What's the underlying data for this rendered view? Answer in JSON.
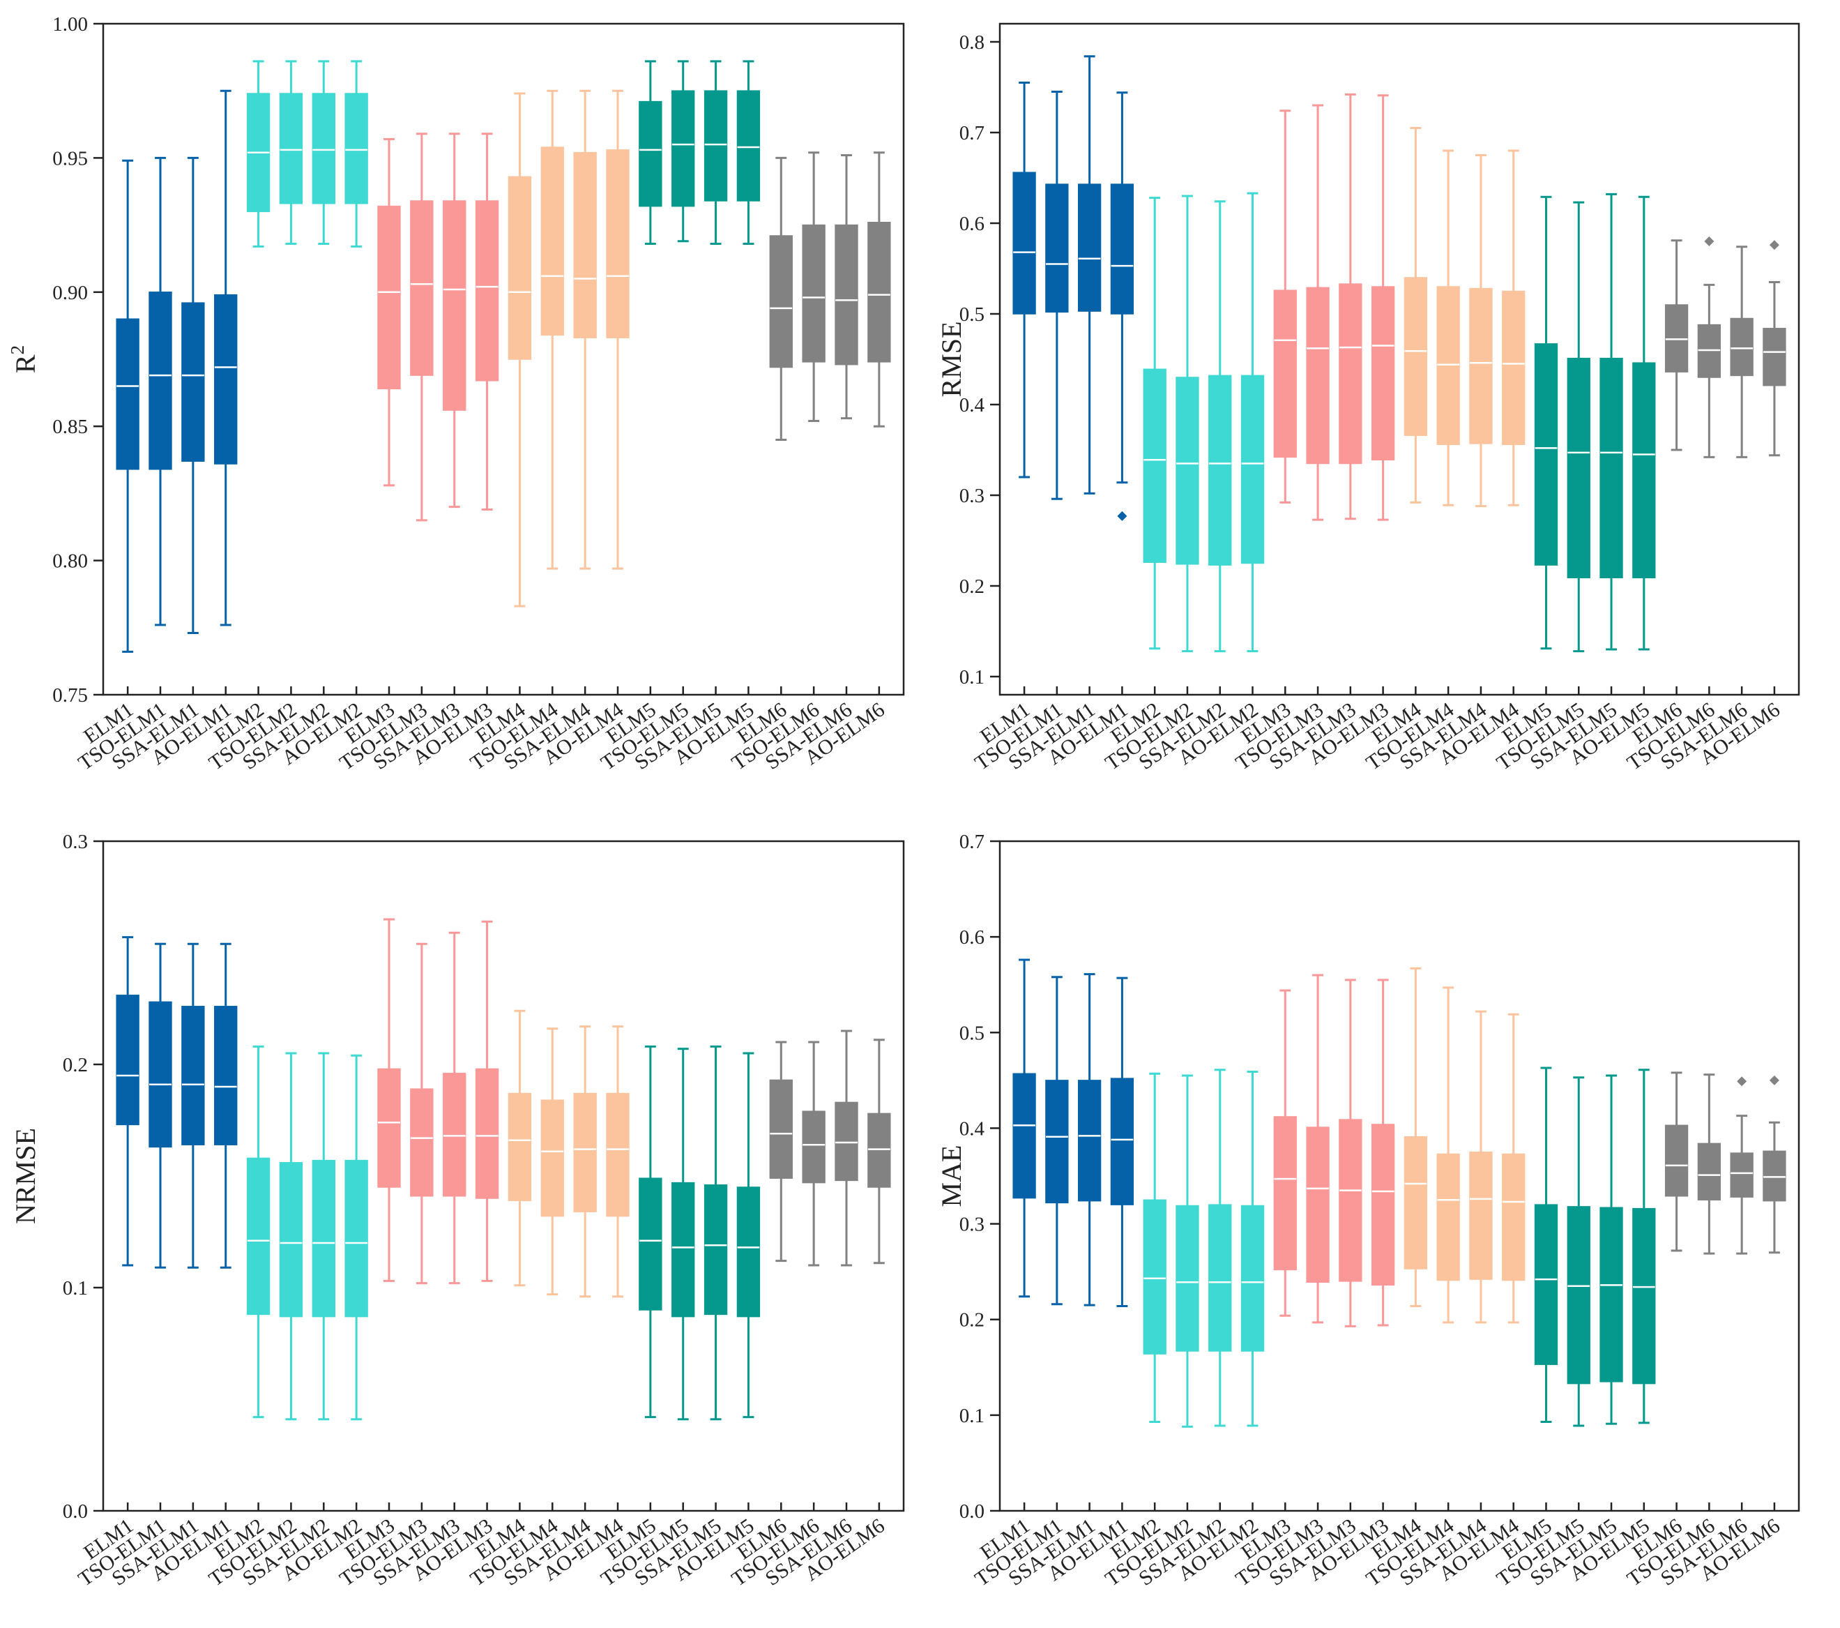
{
  "categories": [
    "ELM1",
    "TSO-ELM1",
    "SSA-ELM1",
    "AO-ELM1",
    "ELM2",
    "TSO-ELM2",
    "SSA-ELM2",
    "AO-ELM2",
    "ELM3",
    "TSO-ELM3",
    "SSA-ELM3",
    "AO-ELM3",
    "ELM4",
    "TSO-ELM4",
    "SSA-ELM4",
    "AO-ELM4",
    "ELM5",
    "TSO-ELM5",
    "SSA-ELM5",
    "AO-ELM5",
    "ELM6",
    "TSO-ELM6",
    "SSA-ELM6",
    "AO-ELM6"
  ],
  "group_colors": [
    "#0562a8",
    "#3dd9d2",
    "#fa9898",
    "#fcc49c",
    "#05998e",
    "#828282"
  ],
  "chart_data": [
    {
      "type": "box",
      "panel": "top-left",
      "ylabel": "R",
      "ylabel_sup": "2",
      "ylim": [
        0.75,
        1.0
      ],
      "yticks": [
        0.75,
        0.8,
        0.85,
        0.9,
        0.95,
        1.0
      ],
      "ytick_labels": [
        "0.75",
        "0.80",
        "0.85",
        "0.90",
        "0.95",
        "1.00"
      ],
      "boxes": [
        {
          "min": 0.766,
          "q1": 0.834,
          "median": 0.865,
          "q3": 0.89,
          "max": 0.949
        },
        {
          "min": 0.776,
          "q1": 0.834,
          "median": 0.869,
          "q3": 0.9,
          "max": 0.95
        },
        {
          "min": 0.773,
          "q1": 0.837,
          "median": 0.869,
          "q3": 0.896,
          "max": 0.95
        },
        {
          "min": 0.776,
          "q1": 0.836,
          "median": 0.872,
          "q3": 0.899,
          "max": 0.975
        },
        {
          "min": 0.917,
          "q1": 0.93,
          "median": 0.952,
          "q3": 0.974,
          "max": 0.986
        },
        {
          "min": 0.918,
          "q1": 0.933,
          "median": 0.953,
          "q3": 0.974,
          "max": 0.986
        },
        {
          "min": 0.918,
          "q1": 0.933,
          "median": 0.953,
          "q3": 0.974,
          "max": 0.986
        },
        {
          "min": 0.917,
          "q1": 0.933,
          "median": 0.953,
          "q3": 0.974,
          "max": 0.986
        },
        {
          "min": 0.828,
          "q1": 0.864,
          "median": 0.9,
          "q3": 0.932,
          "max": 0.957
        },
        {
          "min": 0.815,
          "q1": 0.869,
          "median": 0.903,
          "q3": 0.934,
          "max": 0.959
        },
        {
          "min": 0.82,
          "q1": 0.856,
          "median": 0.901,
          "q3": 0.934,
          "max": 0.959
        },
        {
          "min": 0.819,
          "q1": 0.867,
          "median": 0.902,
          "q3": 0.934,
          "max": 0.959
        },
        {
          "min": 0.783,
          "q1": 0.875,
          "median": 0.9,
          "q3": 0.943,
          "max": 0.974
        },
        {
          "min": 0.797,
          "q1": 0.884,
          "median": 0.906,
          "q3": 0.954,
          "max": 0.975
        },
        {
          "min": 0.797,
          "q1": 0.883,
          "median": 0.905,
          "q3": 0.952,
          "max": 0.975
        },
        {
          "min": 0.797,
          "q1": 0.883,
          "median": 0.906,
          "q3": 0.953,
          "max": 0.975
        },
        {
          "min": 0.918,
          "q1": 0.932,
          "median": 0.953,
          "q3": 0.971,
          "max": 0.986
        },
        {
          "min": 0.919,
          "q1": 0.932,
          "median": 0.955,
          "q3": 0.975,
          "max": 0.986
        },
        {
          "min": 0.918,
          "q1": 0.934,
          "median": 0.955,
          "q3": 0.975,
          "max": 0.986
        },
        {
          "min": 0.918,
          "q1": 0.934,
          "median": 0.954,
          "q3": 0.975,
          "max": 0.986
        },
        {
          "min": 0.845,
          "q1": 0.872,
          "median": 0.894,
          "q3": 0.921,
          "max": 0.95
        },
        {
          "min": 0.852,
          "q1": 0.874,
          "median": 0.898,
          "q3": 0.925,
          "max": 0.952
        },
        {
          "min": 0.853,
          "q1": 0.873,
          "median": 0.897,
          "q3": 0.925,
          "max": 0.951
        },
        {
          "min": 0.85,
          "q1": 0.874,
          "median": 0.899,
          "q3": 0.926,
          "max": 0.952
        }
      ]
    },
    {
      "type": "box",
      "panel": "top-right",
      "ylabel": "RMSE",
      "ylim": [
        0.08,
        0.82
      ],
      "yticks": [
        0.1,
        0.2,
        0.3,
        0.4,
        0.5,
        0.6,
        0.7,
        0.8
      ],
      "ytick_labels": [
        "0.1",
        "0.2",
        "0.3",
        "0.4",
        "0.5",
        "0.6",
        "0.7",
        "0.8"
      ],
      "boxes": [
        {
          "min": 0.32,
          "q1": 0.5,
          "median": 0.568,
          "q3": 0.656,
          "max": 0.755
        },
        {
          "min": 0.296,
          "q1": 0.502,
          "median": 0.555,
          "q3": 0.643,
          "max": 0.745
        },
        {
          "min": 0.302,
          "q1": 0.503,
          "median": 0.561,
          "q3": 0.643,
          "max": 0.784
        },
        {
          "min": 0.314,
          "q1": 0.5,
          "median": 0.553,
          "q3": 0.643,
          "max": 0.744,
          "outliers": [
            0.277
          ]
        },
        {
          "min": 0.131,
          "q1": 0.226,
          "median": 0.339,
          "q3": 0.439,
          "max": 0.628
        },
        {
          "min": 0.128,
          "q1": 0.224,
          "median": 0.335,
          "q3": 0.43,
          "max": 0.63
        },
        {
          "min": 0.128,
          "q1": 0.223,
          "median": 0.335,
          "q3": 0.432,
          "max": 0.624
        },
        {
          "min": 0.128,
          "q1": 0.225,
          "median": 0.335,
          "q3": 0.432,
          "max": 0.633
        },
        {
          "min": 0.292,
          "q1": 0.342,
          "median": 0.471,
          "q3": 0.526,
          "max": 0.724
        },
        {
          "min": 0.273,
          "q1": 0.335,
          "median": 0.462,
          "q3": 0.529,
          "max": 0.73
        },
        {
          "min": 0.274,
          "q1": 0.335,
          "median": 0.463,
          "q3": 0.533,
          "max": 0.742
        },
        {
          "min": 0.273,
          "q1": 0.339,
          "median": 0.465,
          "q3": 0.53,
          "max": 0.741
        },
        {
          "min": 0.292,
          "q1": 0.366,
          "median": 0.459,
          "q3": 0.54,
          "max": 0.705
        },
        {
          "min": 0.289,
          "q1": 0.356,
          "median": 0.444,
          "q3": 0.53,
          "max": 0.68
        },
        {
          "min": 0.288,
          "q1": 0.357,
          "median": 0.446,
          "q3": 0.528,
          "max": 0.675
        },
        {
          "min": 0.289,
          "q1": 0.356,
          "median": 0.445,
          "q3": 0.525,
          "max": 0.68
        },
        {
          "min": 0.131,
          "q1": 0.223,
          "median": 0.352,
          "q3": 0.467,
          "max": 0.629
        },
        {
          "min": 0.128,
          "q1": 0.209,
          "median": 0.347,
          "q3": 0.451,
          "max": 0.623
        },
        {
          "min": 0.13,
          "q1": 0.209,
          "median": 0.347,
          "q3": 0.451,
          "max": 0.632
        },
        {
          "min": 0.13,
          "q1": 0.209,
          "median": 0.345,
          "q3": 0.446,
          "max": 0.629
        },
        {
          "min": 0.35,
          "q1": 0.436,
          "median": 0.472,
          "q3": 0.51,
          "max": 0.581
        },
        {
          "min": 0.342,
          "q1": 0.43,
          "median": 0.46,
          "q3": 0.488,
          "max": 0.532,
          "outliers": [
            0.58
          ]
        },
        {
          "min": 0.342,
          "q1": 0.432,
          "median": 0.462,
          "q3": 0.495,
          "max": 0.574
        },
        {
          "min": 0.344,
          "q1": 0.421,
          "median": 0.458,
          "q3": 0.484,
          "max": 0.535,
          "outliers": [
            0.576
          ]
        }
      ]
    },
    {
      "type": "box",
      "panel": "bottom-left",
      "ylabel": "NRMSE",
      "ylim": [
        0.0,
        0.3
      ],
      "yticks": [
        0.0,
        0.1,
        0.2,
        0.3
      ],
      "ytick_labels": [
        "0.0",
        "0.1",
        "0.2",
        "0.3"
      ],
      "boxes": [
        {
          "min": 0.11,
          "q1": 0.173,
          "median": 0.195,
          "q3": 0.231,
          "max": 0.257
        },
        {
          "min": 0.109,
          "q1": 0.163,
          "median": 0.191,
          "q3": 0.228,
          "max": 0.254
        },
        {
          "min": 0.109,
          "q1": 0.164,
          "median": 0.191,
          "q3": 0.226,
          "max": 0.254
        },
        {
          "min": 0.109,
          "q1": 0.164,
          "median": 0.19,
          "q3": 0.226,
          "max": 0.254
        },
        {
          "min": 0.042,
          "q1": 0.088,
          "median": 0.121,
          "q3": 0.158,
          "max": 0.208
        },
        {
          "min": 0.041,
          "q1": 0.087,
          "median": 0.12,
          "q3": 0.156,
          "max": 0.205
        },
        {
          "min": 0.041,
          "q1": 0.087,
          "median": 0.12,
          "q3": 0.157,
          "max": 0.205
        },
        {
          "min": 0.041,
          "q1": 0.087,
          "median": 0.12,
          "q3": 0.157,
          "max": 0.204
        },
        {
          "min": 0.103,
          "q1": 0.145,
          "median": 0.174,
          "q3": 0.198,
          "max": 0.265
        },
        {
          "min": 0.102,
          "q1": 0.141,
          "median": 0.167,
          "q3": 0.189,
          "max": 0.254
        },
        {
          "min": 0.102,
          "q1": 0.141,
          "median": 0.168,
          "q3": 0.196,
          "max": 0.259
        },
        {
          "min": 0.103,
          "q1": 0.14,
          "median": 0.168,
          "q3": 0.198,
          "max": 0.264
        },
        {
          "min": 0.101,
          "q1": 0.139,
          "median": 0.166,
          "q3": 0.187,
          "max": 0.224
        },
        {
          "min": 0.097,
          "q1": 0.132,
          "median": 0.161,
          "q3": 0.184,
          "max": 0.216
        },
        {
          "min": 0.096,
          "q1": 0.134,
          "median": 0.162,
          "q3": 0.187,
          "max": 0.217
        },
        {
          "min": 0.096,
          "q1": 0.132,
          "median": 0.162,
          "q3": 0.187,
          "max": 0.217
        },
        {
          "min": 0.042,
          "q1": 0.09,
          "median": 0.121,
          "q3": 0.149,
          "max": 0.208
        },
        {
          "min": 0.041,
          "q1": 0.087,
          "median": 0.118,
          "q3": 0.147,
          "max": 0.207
        },
        {
          "min": 0.041,
          "q1": 0.088,
          "median": 0.119,
          "q3": 0.146,
          "max": 0.208
        },
        {
          "min": 0.042,
          "q1": 0.087,
          "median": 0.118,
          "q3": 0.145,
          "max": 0.205
        },
        {
          "min": 0.112,
          "q1": 0.149,
          "median": 0.169,
          "q3": 0.193,
          "max": 0.21
        },
        {
          "min": 0.11,
          "q1": 0.147,
          "median": 0.164,
          "q3": 0.179,
          "max": 0.21
        },
        {
          "min": 0.11,
          "q1": 0.148,
          "median": 0.165,
          "q3": 0.183,
          "max": 0.215
        },
        {
          "min": 0.111,
          "q1": 0.145,
          "median": 0.162,
          "q3": 0.178,
          "max": 0.211
        }
      ]
    },
    {
      "type": "box",
      "panel": "bottom-right",
      "ylabel": "MAE",
      "ylim": [
        0.0,
        0.7
      ],
      "yticks": [
        0.0,
        0.1,
        0.2,
        0.3,
        0.4,
        0.5,
        0.6,
        0.7
      ],
      "ytick_labels": [
        "0.0",
        "0.1",
        "0.2",
        "0.3",
        "0.4",
        "0.5",
        "0.6",
        "0.7"
      ],
      "boxes": [
        {
          "min": 0.224,
          "q1": 0.327,
          "median": 0.403,
          "q3": 0.457,
          "max": 0.576
        },
        {
          "min": 0.216,
          "q1": 0.322,
          "median": 0.391,
          "q3": 0.45,
          "max": 0.558
        },
        {
          "min": 0.215,
          "q1": 0.324,
          "median": 0.392,
          "q3": 0.45,
          "max": 0.561
        },
        {
          "min": 0.214,
          "q1": 0.32,
          "median": 0.388,
          "q3": 0.452,
          "max": 0.557
        },
        {
          "min": 0.093,
          "q1": 0.164,
          "median": 0.243,
          "q3": 0.325,
          "max": 0.457
        },
        {
          "min": 0.088,
          "q1": 0.167,
          "median": 0.239,
          "q3": 0.319,
          "max": 0.455
        },
        {
          "min": 0.089,
          "q1": 0.167,
          "median": 0.239,
          "q3": 0.32,
          "max": 0.461
        },
        {
          "min": 0.089,
          "q1": 0.167,
          "median": 0.239,
          "q3": 0.319,
          "max": 0.459
        },
        {
          "min": 0.204,
          "q1": 0.252,
          "median": 0.347,
          "q3": 0.412,
          "max": 0.544
        },
        {
          "min": 0.197,
          "q1": 0.239,
          "median": 0.337,
          "q3": 0.401,
          "max": 0.56
        },
        {
          "min": 0.193,
          "q1": 0.24,
          "median": 0.335,
          "q3": 0.409,
          "max": 0.555
        },
        {
          "min": 0.194,
          "q1": 0.236,
          "median": 0.334,
          "q3": 0.404,
          "max": 0.555
        },
        {
          "min": 0.214,
          "q1": 0.253,
          "median": 0.342,
          "q3": 0.391,
          "max": 0.567
        },
        {
          "min": 0.197,
          "q1": 0.241,
          "median": 0.325,
          "q3": 0.373,
          "max": 0.547
        },
        {
          "min": 0.197,
          "q1": 0.242,
          "median": 0.326,
          "q3": 0.375,
          "max": 0.522
        },
        {
          "min": 0.197,
          "q1": 0.241,
          "median": 0.323,
          "q3": 0.373,
          "max": 0.519
        },
        {
          "min": 0.093,
          "q1": 0.153,
          "median": 0.242,
          "q3": 0.32,
          "max": 0.463
        },
        {
          "min": 0.089,
          "q1": 0.133,
          "median": 0.235,
          "q3": 0.318,
          "max": 0.453
        },
        {
          "min": 0.091,
          "q1": 0.135,
          "median": 0.236,
          "q3": 0.317,
          "max": 0.455
        },
        {
          "min": 0.092,
          "q1": 0.133,
          "median": 0.234,
          "q3": 0.316,
          "max": 0.461
        },
        {
          "min": 0.272,
          "q1": 0.329,
          "median": 0.361,
          "q3": 0.403,
          "max": 0.458
        },
        {
          "min": 0.269,
          "q1": 0.325,
          "median": 0.351,
          "q3": 0.384,
          "max": 0.456
        },
        {
          "min": 0.269,
          "q1": 0.328,
          "median": 0.353,
          "q3": 0.374,
          "max": 0.413,
          "outliers": [
            0.449
          ]
        },
        {
          "min": 0.27,
          "q1": 0.324,
          "median": 0.349,
          "q3": 0.376,
          "max": 0.406,
          "outliers": [
            0.45
          ]
        }
      ]
    }
  ]
}
